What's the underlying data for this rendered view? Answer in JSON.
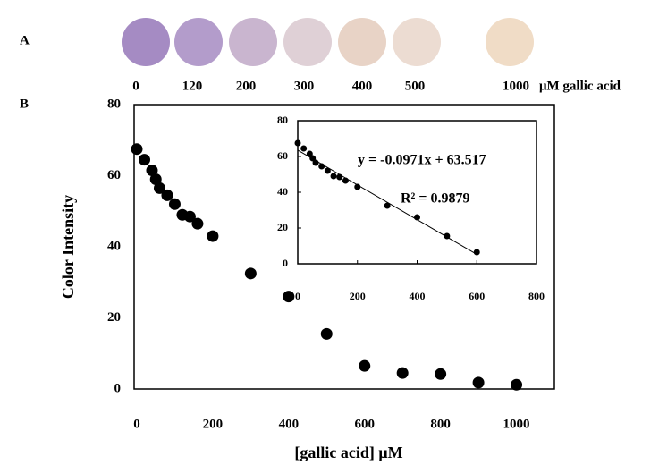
{
  "panel_a": {
    "label": "A",
    "unit": "μM gallic acid",
    "spots": [
      {
        "label": "0",
        "color": "#a58bc3"
      },
      {
        "label": "120",
        "color": "#b39ccb"
      },
      {
        "label": "200",
        "color": "#c9b5cf"
      },
      {
        "label": "300",
        "color": "#dfd0d6"
      },
      {
        "label": "400",
        "color": "#e8d3c6"
      },
      {
        "label": "500",
        "color": "#ecdcd2"
      },
      {
        "label": "1000",
        "color": "#f0dcc6"
      }
    ]
  },
  "chart_data": [
    {
      "type": "scatter",
      "label": "B",
      "x_label": "[gallic acid] μM",
      "y_label": "Color Intensity",
      "x": [
        0,
        20,
        40,
        50,
        60,
        80,
        100,
        120,
        140,
        160,
        200,
        300,
        400,
        500,
        600,
        700,
        800,
        900,
        1000
      ],
      "y": [
        67.5,
        64.5,
        61.5,
        59,
        56.5,
        54.5,
        52,
        49,
        48.5,
        46.5,
        43,
        32.5,
        26,
        15.5,
        6.5,
        4.5,
        4.2,
        1.8,
        1.2
      ],
      "color": "#000000",
      "xlim": [
        0,
        1100
      ],
      "xticks": [
        0,
        200,
        400,
        600,
        800,
        1000
      ],
      "ylim": [
        0,
        80
      ],
      "yticks": [
        0,
        20,
        40,
        60,
        80
      ]
    },
    {
      "type": "scatter",
      "x": [
        0,
        20,
        40,
        50,
        60,
        80,
        100,
        120,
        140,
        160,
        200,
        300,
        400,
        500,
        600
      ],
      "y": [
        67.5,
        64.5,
        61.5,
        59,
        56.5,
        54.5,
        52,
        49,
        48.5,
        46.5,
        43,
        32.5,
        26,
        15.5,
        6.5
      ],
      "color": "#000000",
      "xlim": [
        0,
        800
      ],
      "xticks": [
        0,
        200,
        400,
        600,
        800
      ],
      "ylim": [
        0,
        80
      ],
      "yticks": [
        0,
        20,
        40,
        60,
        80
      ],
      "fit": {
        "slope": -0.0971,
        "intercept": 63.517,
        "equation": "y = -0.0971x + 63.517",
        "r2": "R² = 0.9879"
      }
    }
  ]
}
